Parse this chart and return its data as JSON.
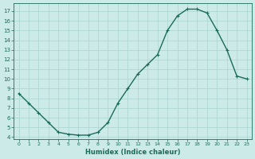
{
  "x": [
    0,
    1,
    2,
    3,
    4,
    5,
    6,
    7,
    8,
    9,
    10,
    11,
    12,
    13,
    14,
    15,
    16,
    17,
    18,
    19,
    20,
    21,
    22,
    23
  ],
  "y": [
    8.5,
    7.5,
    6.5,
    5.5,
    4.5,
    4.3,
    4.2,
    4.2,
    4.5,
    5.5,
    7.5,
    9.0,
    10.5,
    11.5,
    12.5,
    15.0,
    16.5,
    17.2,
    17.2,
    16.8,
    15.0,
    13.0,
    10.3,
    10.0
  ],
  "line_color": "#1a6b5a",
  "marker": "+",
  "marker_size": 3,
  "background_color": "#cceae8",
  "grid_color": "#aad4d0",
  "xlabel": "Humidex (Indice chaleur)",
  "xlim": [
    -0.5,
    23.5
  ],
  "ylim": [
    3.8,
    17.8
  ],
  "yticks": [
    4,
    5,
    6,
    7,
    8,
    9,
    10,
    11,
    12,
    13,
    14,
    15,
    16,
    17
  ],
  "xticks": [
    0,
    1,
    2,
    3,
    4,
    5,
    6,
    7,
    8,
    9,
    10,
    11,
    12,
    13,
    14,
    15,
    16,
    17,
    18,
    19,
    20,
    21,
    22,
    23
  ],
  "tick_color": "#1a6b5a",
  "label_color": "#1a6b5a",
  "linewidth": 1.0
}
